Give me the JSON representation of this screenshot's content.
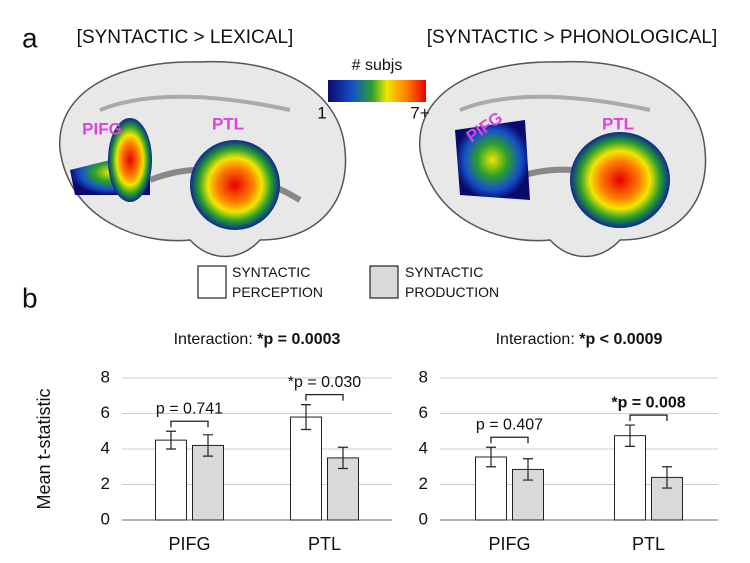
{
  "panel_labels": [
    "a",
    "b"
  ],
  "brain_maps": [
    {
      "title": "[SYNTACTIC > LEXICAL]",
      "regions": [
        "PIFG",
        "PTL"
      ]
    },
    {
      "title": "[SYNTACTIC > PHONOLOGICAL]",
      "regions": [
        "PIFG",
        "PTL"
      ]
    }
  ],
  "colorbar": {
    "title": "# subjs",
    "min_label": "1",
    "max_label": "7+"
  },
  "legend": [
    {
      "name": "SYNTACTIC PERCEPTION",
      "color": "#ffffff"
    },
    {
      "name": "SYNTACTIC PRODUCTION",
      "color": "#d9d9d9"
    }
  ],
  "chart_data": [
    {
      "type": "bar",
      "title": "Interaction:",
      "title_stat": "*p = 0.0003",
      "ylabel": "Mean t-statistic",
      "categories": [
        "PIFG",
        "PTL"
      ],
      "series": [
        {
          "values": [
            4.5,
            5.8
          ],
          "errors": [
            0.5,
            0.7
          ]
        },
        {
          "values": [
            4.2,
            3.5
          ],
          "errors": [
            0.6,
            0.6
          ]
        }
      ],
      "annotations": [
        {
          "text": "p = 0.741",
          "bold": false
        },
        {
          "text": "*p = 0.030",
          "bold": false
        }
      ],
      "ylim": [
        0,
        8
      ],
      "yticks": [
        0,
        2,
        4,
        6,
        8
      ],
      "grid": true
    },
    {
      "type": "bar",
      "title": "Interaction:",
      "title_stat": "*p < 0.0009",
      "categories": [
        "PIFG",
        "PTL"
      ],
      "series": [
        {
          "values": [
            3.55,
            4.75
          ],
          "errors": [
            0.55,
            0.6
          ]
        },
        {
          "values": [
            2.85,
            2.4
          ],
          "errors": [
            0.6,
            0.6
          ]
        }
      ],
      "annotations": [
        {
          "text": "p = 0.407",
          "bold": false
        },
        {
          "text": "*p = 0.008",
          "bold": true
        }
      ],
      "ylim": [
        0,
        8
      ],
      "yticks": [
        0,
        2,
        4,
        6,
        8
      ],
      "grid": true
    }
  ]
}
